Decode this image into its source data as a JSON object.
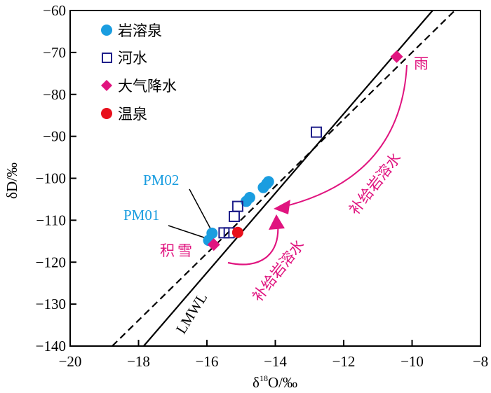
{
  "chart_data": {
    "type": "scatter",
    "title": "",
    "xlabel": "δ18O/‰",
    "xlabel_main": "δ",
    "xlabel_sup": "18",
    "xlabel_rest": "O/‰",
    "ylabel": "δD/‰",
    "xlim": [
      -20,
      -8
    ],
    "ylim": [
      -140,
      -60
    ],
    "xticks": [
      -20,
      -18,
      -16,
      -14,
      -12,
      -10,
      -8
    ],
    "yticks": [
      -60,
      -70,
      -80,
      -90,
      -100,
      -110,
      -120,
      -130,
      -140
    ],
    "xtick_labels": [
      "−20",
      "−18",
      "−16",
      "−14",
      "−12",
      "−10",
      "−8"
    ],
    "ytick_labels": [
      "−60",
      "−70",
      "−80",
      "−90",
      "−100",
      "−110",
      "−120",
      "−130",
      "−140"
    ],
    "grid": false,
    "legend_position": "top-left",
    "series": [
      {
        "name": "岩溶泉",
        "marker": "circle",
        "color": "#1a9de0",
        "points": [
          [
            -15.95,
            -114.8
          ],
          [
            -15.85,
            -113.1
          ],
          [
            -14.85,
            -105.5
          ],
          [
            -14.75,
            -104.6
          ],
          [
            -14.35,
            -102.2
          ],
          [
            -14.25,
            -101.3
          ],
          [
            -14.2,
            -100.8
          ]
        ]
      },
      {
        "name": "河水",
        "marker": "square-open",
        "color": "#1f1f8a",
        "points": [
          [
            -15.5,
            -113.0
          ],
          [
            -15.35,
            -113.0
          ],
          [
            -15.2,
            -109.1
          ],
          [
            -15.1,
            -106.7
          ],
          [
            -12.8,
            -89.0
          ]
        ]
      },
      {
        "name": "大气降水",
        "marker": "diamond",
        "color": "#e0147f",
        "points": [
          [
            -15.8,
            -115.8
          ],
          [
            -10.45,
            -71.0
          ]
        ]
      },
      {
        "name": "温泉",
        "marker": "circle",
        "color": "#e8101c",
        "points": [
          [
            -15.1,
            -112.9
          ]
        ]
      }
    ],
    "lines": [
      {
        "name": "LMWL",
        "style": "solid",
        "color": "#000000",
        "x_at_ymin": -17.85,
        "x_at_ymax": -9.4
      },
      {
        "name": "fit",
        "style": "dashed",
        "color": "#000000",
        "x_at_ymin": -18.77,
        "x_at_ymax": -8.75
      }
    ],
    "annotations": [
      {
        "text": "PM02",
        "color": "#1a9de0",
        "target": [
          -15.85,
          -113.1
        ]
      },
      {
        "text": "PM01",
        "color": "#1a9de0",
        "target": [
          -15.95,
          -114.8
        ]
      },
      {
        "text": "积雪",
        "color": "#e0147f"
      },
      {
        "text": "雨",
        "color": "#e0147f"
      },
      {
        "text": "补给岩溶水",
        "color": "#e0147f",
        "note": "arrow from 雨"
      },
      {
        "text": "补给岩溶水",
        "color": "#e0147f",
        "note": "arrow from 积雪"
      },
      {
        "text": "LMWL",
        "color": "#000000"
      }
    ]
  }
}
